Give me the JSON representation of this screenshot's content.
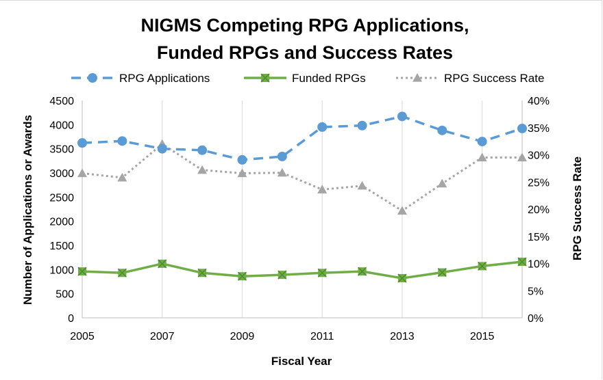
{
  "chart_data": {
    "type": "line",
    "title_lines": [
      "NIGMS Competing RPG Applications,",
      "Funded RPGs and Success Rates"
    ],
    "xlabel": "Fiscal Year",
    "ylabel": "Number of Applications or Awards",
    "ylabel_right": "RPG Success Rate",
    "x": [
      2005,
      2006,
      2007,
      2008,
      2009,
      2010,
      2011,
      2012,
      2013,
      2014,
      2015,
      2016
    ],
    "x_tick_labels": [
      "2005",
      "2007",
      "2009",
      "2011",
      "2013",
      "2015"
    ],
    "y_tick_labels": [
      "0",
      "500",
      "1000",
      "1500",
      "2000",
      "2500",
      "3000",
      "3500",
      "4000",
      "4500"
    ],
    "y2_tick_labels": [
      "0%",
      "5%",
      "10%",
      "15%",
      "20%",
      "25%",
      "30%",
      "35%",
      "40%"
    ],
    "xlim": [
      2005,
      2016
    ],
    "ylim": [
      0,
      4500
    ],
    "y2lim": [
      0,
      0.4
    ],
    "grid": "vertical",
    "legend_position": "top",
    "series": [
      {
        "name": "RPG Applications",
        "axis": "left",
        "style": "dashed",
        "marker": "circle",
        "color": "#5b9bd5",
        "values": [
          3620,
          3660,
          3500,
          3470,
          3270,
          3340,
          3950,
          3980,
          4170,
          3880,
          3650,
          3920
        ]
      },
      {
        "name": "Funded RPGs",
        "axis": "left",
        "style": "solid",
        "marker": "square-x",
        "color": "#70ad47",
        "values": [
          960,
          930,
          1120,
          930,
          860,
          890,
          930,
          960,
          820,
          940,
          1070,
          1160
        ]
      },
      {
        "name": "RPG Success Rate",
        "axis": "right",
        "style": "dotted",
        "marker": "triangle",
        "color": "#a5a5a5",
        "values": [
          0.266,
          0.258,
          0.32,
          0.272,
          0.266,
          0.267,
          0.236,
          0.243,
          0.197,
          0.247,
          0.295,
          0.295
        ]
      }
    ]
  }
}
